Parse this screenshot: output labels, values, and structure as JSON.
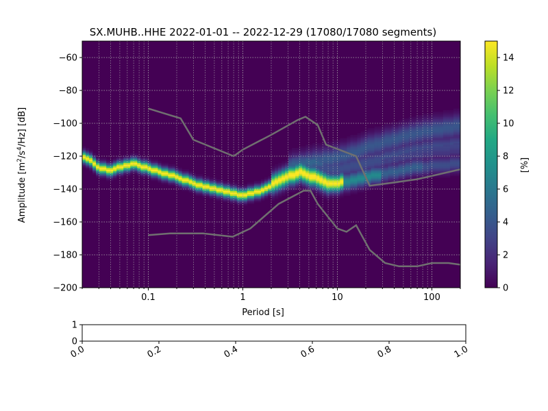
{
  "chart_data": [
    {
      "type": "heatmap",
      "title": "SX.MUHB..HHE   2022-01-01 -- 2022-12-29  (17080/17080 segments)",
      "xlabel": "Period [s]",
      "ylabel_main": "Amplitude [m",
      "ylabel_sup1": "2",
      "ylabel_mid": "/s",
      "ylabel_sup2": "4",
      "ylabel_end": "/Hz] [dB]",
      "x_scale": "log",
      "xlim": [
        0.02,
        200
      ],
      "ylim": [
        -200,
        -50
      ],
      "x_tick_labels": [
        "0.1",
        "1",
        "10",
        "100"
      ],
      "x_tick_values": [
        0.1,
        1,
        10,
        100
      ],
      "y_tick_labels": [
        "−60",
        "−80",
        "−100",
        "−120",
        "−140",
        "−160",
        "−180",
        "−200"
      ],
      "y_tick_values": [
        -60,
        -80,
        -100,
        -120,
        -140,
        -160,
        -180,
        -200
      ],
      "grid": true,
      "colormap": "viridis",
      "colorbar": {
        "label": "[%]",
        "range": [
          0,
          15
        ],
        "tick_labels": [
          "0",
          "2",
          "4",
          "6",
          "8",
          "10",
          "12",
          "14"
        ],
        "tick_values": [
          0,
          2,
          4,
          6,
          8,
          10,
          12,
          14
        ]
      },
      "density_bands": [
        {
          "name": "main",
          "peak": 15,
          "points": [
            [
              0.02,
              -120
            ],
            [
              0.025,
              -123
            ],
            [
              0.03,
              -128
            ],
            [
              0.04,
              -129
            ],
            [
              0.05,
              -127
            ],
            [
              0.07,
              -125
            ],
            [
              0.1,
              -128
            ],
            [
              0.2,
              -133
            ],
            [
              0.3,
              -137
            ],
            [
              0.5,
              -140
            ],
            [
              0.8,
              -143
            ],
            [
              1,
              -144
            ],
            [
              1.5,
              -142
            ],
            [
              2,
              -138
            ],
            [
              3,
              -133
            ],
            [
              4,
              -130
            ],
            [
              6,
              -134
            ],
            [
              8,
              -137
            ],
            [
              10,
              -137
            ],
            [
              15,
              -135
            ],
            [
              20,
              -133
            ],
            [
              40,
              -130
            ],
            [
              70,
              -127
            ],
            [
              120,
              -126
            ],
            [
              200,
              -125
            ]
          ]
        },
        {
          "name": "upper",
          "peak": 4,
          "points": [
            [
              3,
              -127
            ],
            [
              5,
              -124
            ],
            [
              8,
              -122
            ],
            [
              10,
              -121
            ],
            [
              15,
              -118
            ],
            [
              20,
              -115
            ],
            [
              40,
              -110
            ],
            [
              70,
              -106
            ],
            [
              120,
              -104
            ],
            [
              200,
              -102
            ]
          ]
        },
        {
          "name": "middle",
          "peak": 3,
          "points": [
            [
              5,
              -129
            ],
            [
              10,
              -128
            ],
            [
              20,
              -125
            ],
            [
              40,
              -120
            ],
            [
              70,
              -117
            ],
            [
              120,
              -115
            ],
            [
              200,
              -114
            ]
          ]
        }
      ],
      "series": [
        {
          "name": "",
          "x": [
            0.1,
            0.22,
            0.3,
            0.8,
            1,
            2,
            3.8,
            4.6,
            6.2,
            7.6,
            15.8,
            22,
            40,
            70,
            100,
            200
          ],
          "y": [
            -91,
            -97,
            -110,
            -120,
            -116,
            -107,
            -98,
            -96,
            -101,
            -113,
            -120,
            -138,
            -136,
            -134,
            -132,
            -128
          ]
        },
        {
          "name": "",
          "x": [
            0.1,
            0.17,
            0.38,
            0.78,
            1.2,
            2.4,
            4.4,
            5.2,
            6.2,
            10,
            12.5,
            15.8,
            22,
            32,
            45,
            70,
            100,
            150,
            200
          ],
          "y": [
            -168,
            -167,
            -167,
            -169,
            -164,
            -149,
            -141,
            -141,
            -149,
            -164,
            -166,
            -162,
            -177,
            -185,
            -187,
            -187,
            -185,
            -185,
            -186
          ]
        }
      ]
    },
    {
      "type": "line",
      "xlim": [
        0,
        1
      ],
      "ylim": [
        0,
        1
      ],
      "x_tick_labels": [
        "0.0",
        "0.2",
        "0.4",
        "0.6",
        "0.8",
        "1.0"
      ],
      "x_tick_values": [
        0,
        0.2,
        0.4,
        0.6,
        0.8,
        1.0
      ],
      "y_tick_labels": [
        "0",
        "1"
      ],
      "y_tick_values": [
        0,
        1
      ],
      "series": []
    }
  ]
}
